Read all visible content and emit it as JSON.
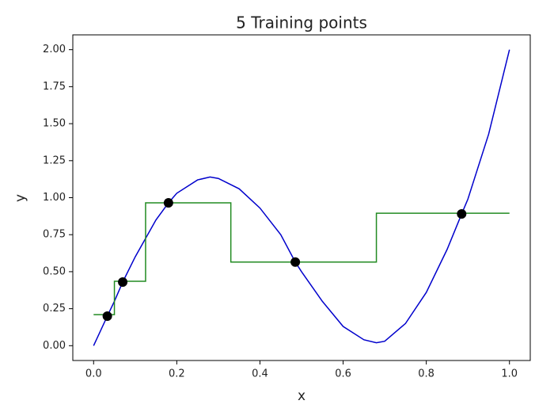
{
  "chart_data": {
    "type": "line",
    "title": "5 Training points",
    "xlabel": "x",
    "ylabel": "y",
    "xlim": [
      -0.05,
      1.05
    ],
    "ylim": [
      -0.1,
      2.1
    ],
    "xticks": [
      {
        "value": 0,
        "label": "0.0"
      },
      {
        "value": 0.2,
        "label": "0.2"
      },
      {
        "value": 0.4,
        "label": "0.4"
      },
      {
        "value": 0.6,
        "label": "0.6"
      },
      {
        "value": 0.8,
        "label": "0.8"
      },
      {
        "value": 1,
        "label": "1.0"
      }
    ],
    "yticks": [
      {
        "value": 0,
        "label": "0.00"
      },
      {
        "value": 0.25,
        "label": "0.25"
      },
      {
        "value": 0.5,
        "label": "0.50"
      },
      {
        "value": 0.75,
        "label": "0.75"
      },
      {
        "value": 1,
        "label": "1.00"
      },
      {
        "value": 1.25,
        "label": "1.25"
      },
      {
        "value": 1.5,
        "label": "1.50"
      },
      {
        "value": 1.75,
        "label": "1.75"
      },
      {
        "value": 2,
        "label": "2.00"
      }
    ],
    "series": [
      {
        "type": "line",
        "color": "#0000cc",
        "x": [
          0,
          0.033,
          0.05,
          0.07,
          0.1,
          0.15,
          0.18,
          0.2,
          0.25,
          0.28,
          0.3,
          0.35,
          0.4,
          0.45,
          0.485,
          0.5,
          0.55,
          0.6,
          0.65,
          0.68,
          0.7,
          0.75,
          0.8,
          0.85,
          0.885,
          0.9,
          0.95,
          1.0
        ],
        "values": [
          0,
          0.2,
          0.3,
          0.43,
          0.6,
          0.85,
          0.965,
          1.03,
          1.12,
          1.14,
          1.13,
          1.06,
          0.93,
          0.75,
          0.565,
          0.5,
          0.3,
          0.13,
          0.04,
          0.02,
          0.03,
          0.15,
          0.36,
          0.65,
          0.89,
          0.99,
          1.43,
          2.0
        ]
      },
      {
        "type": "step",
        "color": "#228b22",
        "x": [
          0,
          0.05,
          0.125,
          0.33,
          0.68,
          1.0
        ],
        "values": [
          0.21,
          0.435,
          0.965,
          0.565,
          0.895,
          0.895
        ]
      },
      {
        "type": "scatter",
        "color": "#000000",
        "x": [
          0.033,
          0.07,
          0.18,
          0.485,
          0.885
        ],
        "values": [
          0.2,
          0.43,
          0.965,
          0.565,
          0.89
        ]
      }
    ]
  }
}
